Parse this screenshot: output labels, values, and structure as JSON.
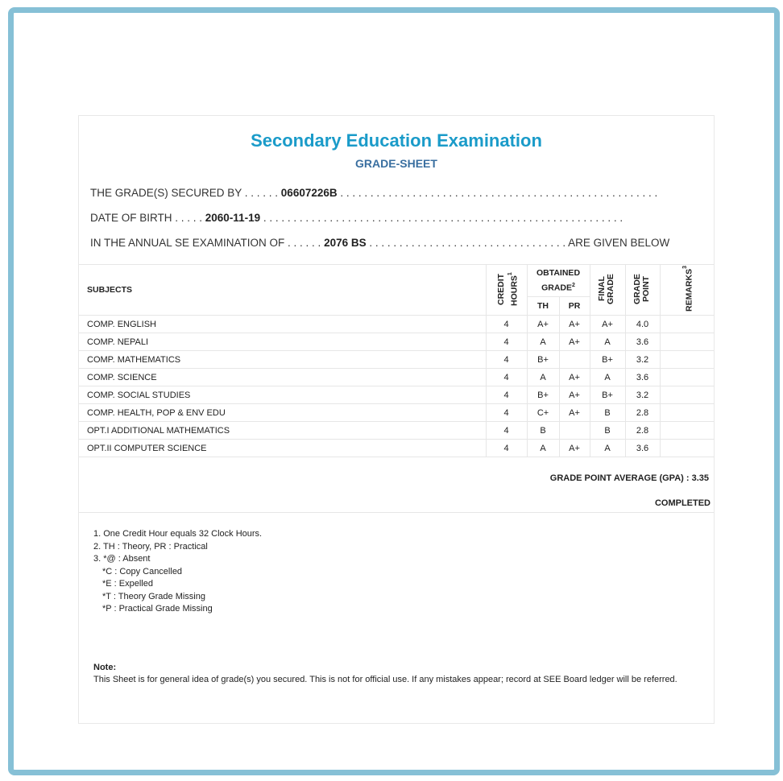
{
  "title": "Secondary Education Examination",
  "subtitle": "GRADE-SHEET",
  "info": {
    "secured_by_label": "THE GRADE(S) SECURED BY",
    "symbol_no": "06607226B",
    "dob_label": "DATE OF BIRTH",
    "dob": "2060-11-19",
    "exam_label": "IN THE ANNUAL SE EXAMINATION OF",
    "exam_year": "2076 BS",
    "exam_suffix": "ARE GIVEN BELOW"
  },
  "table": {
    "headers": {
      "subjects": "SUBJECTS",
      "credit": "CREDIT HOURS",
      "credit_sup": "1",
      "obtained": "OBTAINED GRADE",
      "obtained_sup": "2",
      "th": "TH",
      "pr": "PR",
      "final": "FINAL GRADE",
      "gp": "GRADE POINT",
      "remarks": "REMARKS",
      "remarks_sup": "3"
    },
    "rows": [
      {
        "subject": "COMP. ENGLISH",
        "credit": "4",
        "th": "A+",
        "pr": "A+",
        "final": "A+",
        "gp": "4.0",
        "remarks": ""
      },
      {
        "subject": "COMP. NEPALI",
        "credit": "4",
        "th": "A",
        "pr": "A+",
        "final": "A",
        "gp": "3.6",
        "remarks": ""
      },
      {
        "subject": "COMP. MATHEMATICS",
        "credit": "4",
        "th": "B+",
        "pr": "",
        "final": "B+",
        "gp": "3.2",
        "remarks": ""
      },
      {
        "subject": "COMP. SCIENCE",
        "credit": "4",
        "th": "A",
        "pr": "A+",
        "final": "A",
        "gp": "3.6",
        "remarks": ""
      },
      {
        "subject": "COMP. SOCIAL STUDIES",
        "credit": "4",
        "th": "B+",
        "pr": "A+",
        "final": "B+",
        "gp": "3.2",
        "remarks": ""
      },
      {
        "subject": "COMP. HEALTH, POP & ENV EDU",
        "credit": "4",
        "th": "C+",
        "pr": "A+",
        "final": "B",
        "gp": "2.8",
        "remarks": ""
      },
      {
        "subject": "OPT.I ADDITIONAL MATHEMATICS",
        "credit": "4",
        "th": "B",
        "pr": "",
        "final": "B",
        "gp": "2.8",
        "remarks": ""
      },
      {
        "subject": "OPT.II COMPUTER SCIENCE",
        "credit": "4",
        "th": "A",
        "pr": "A+",
        "final": "A",
        "gp": "3.6",
        "remarks": ""
      }
    ]
  },
  "gpa": "GRADE POINT AVERAGE (GPA) : 3.35",
  "status": "COMPLETED",
  "footnotes": [
    "1. One Credit Hour equals 32 Clock Hours.",
    "2. TH : Theory, PR : Practical",
    "3. *@ : Absent",
    "*C : Copy Cancelled",
    "*E : Expelled",
    "*T : Theory Grade Missing",
    "*P : Practical Grade Missing"
  ],
  "note": {
    "label": "Note:",
    "text": "This Sheet is for general idea of grade(s) you secured. This is not for official use. If any mistakes appear; record at SEE Board ledger will be referred."
  }
}
